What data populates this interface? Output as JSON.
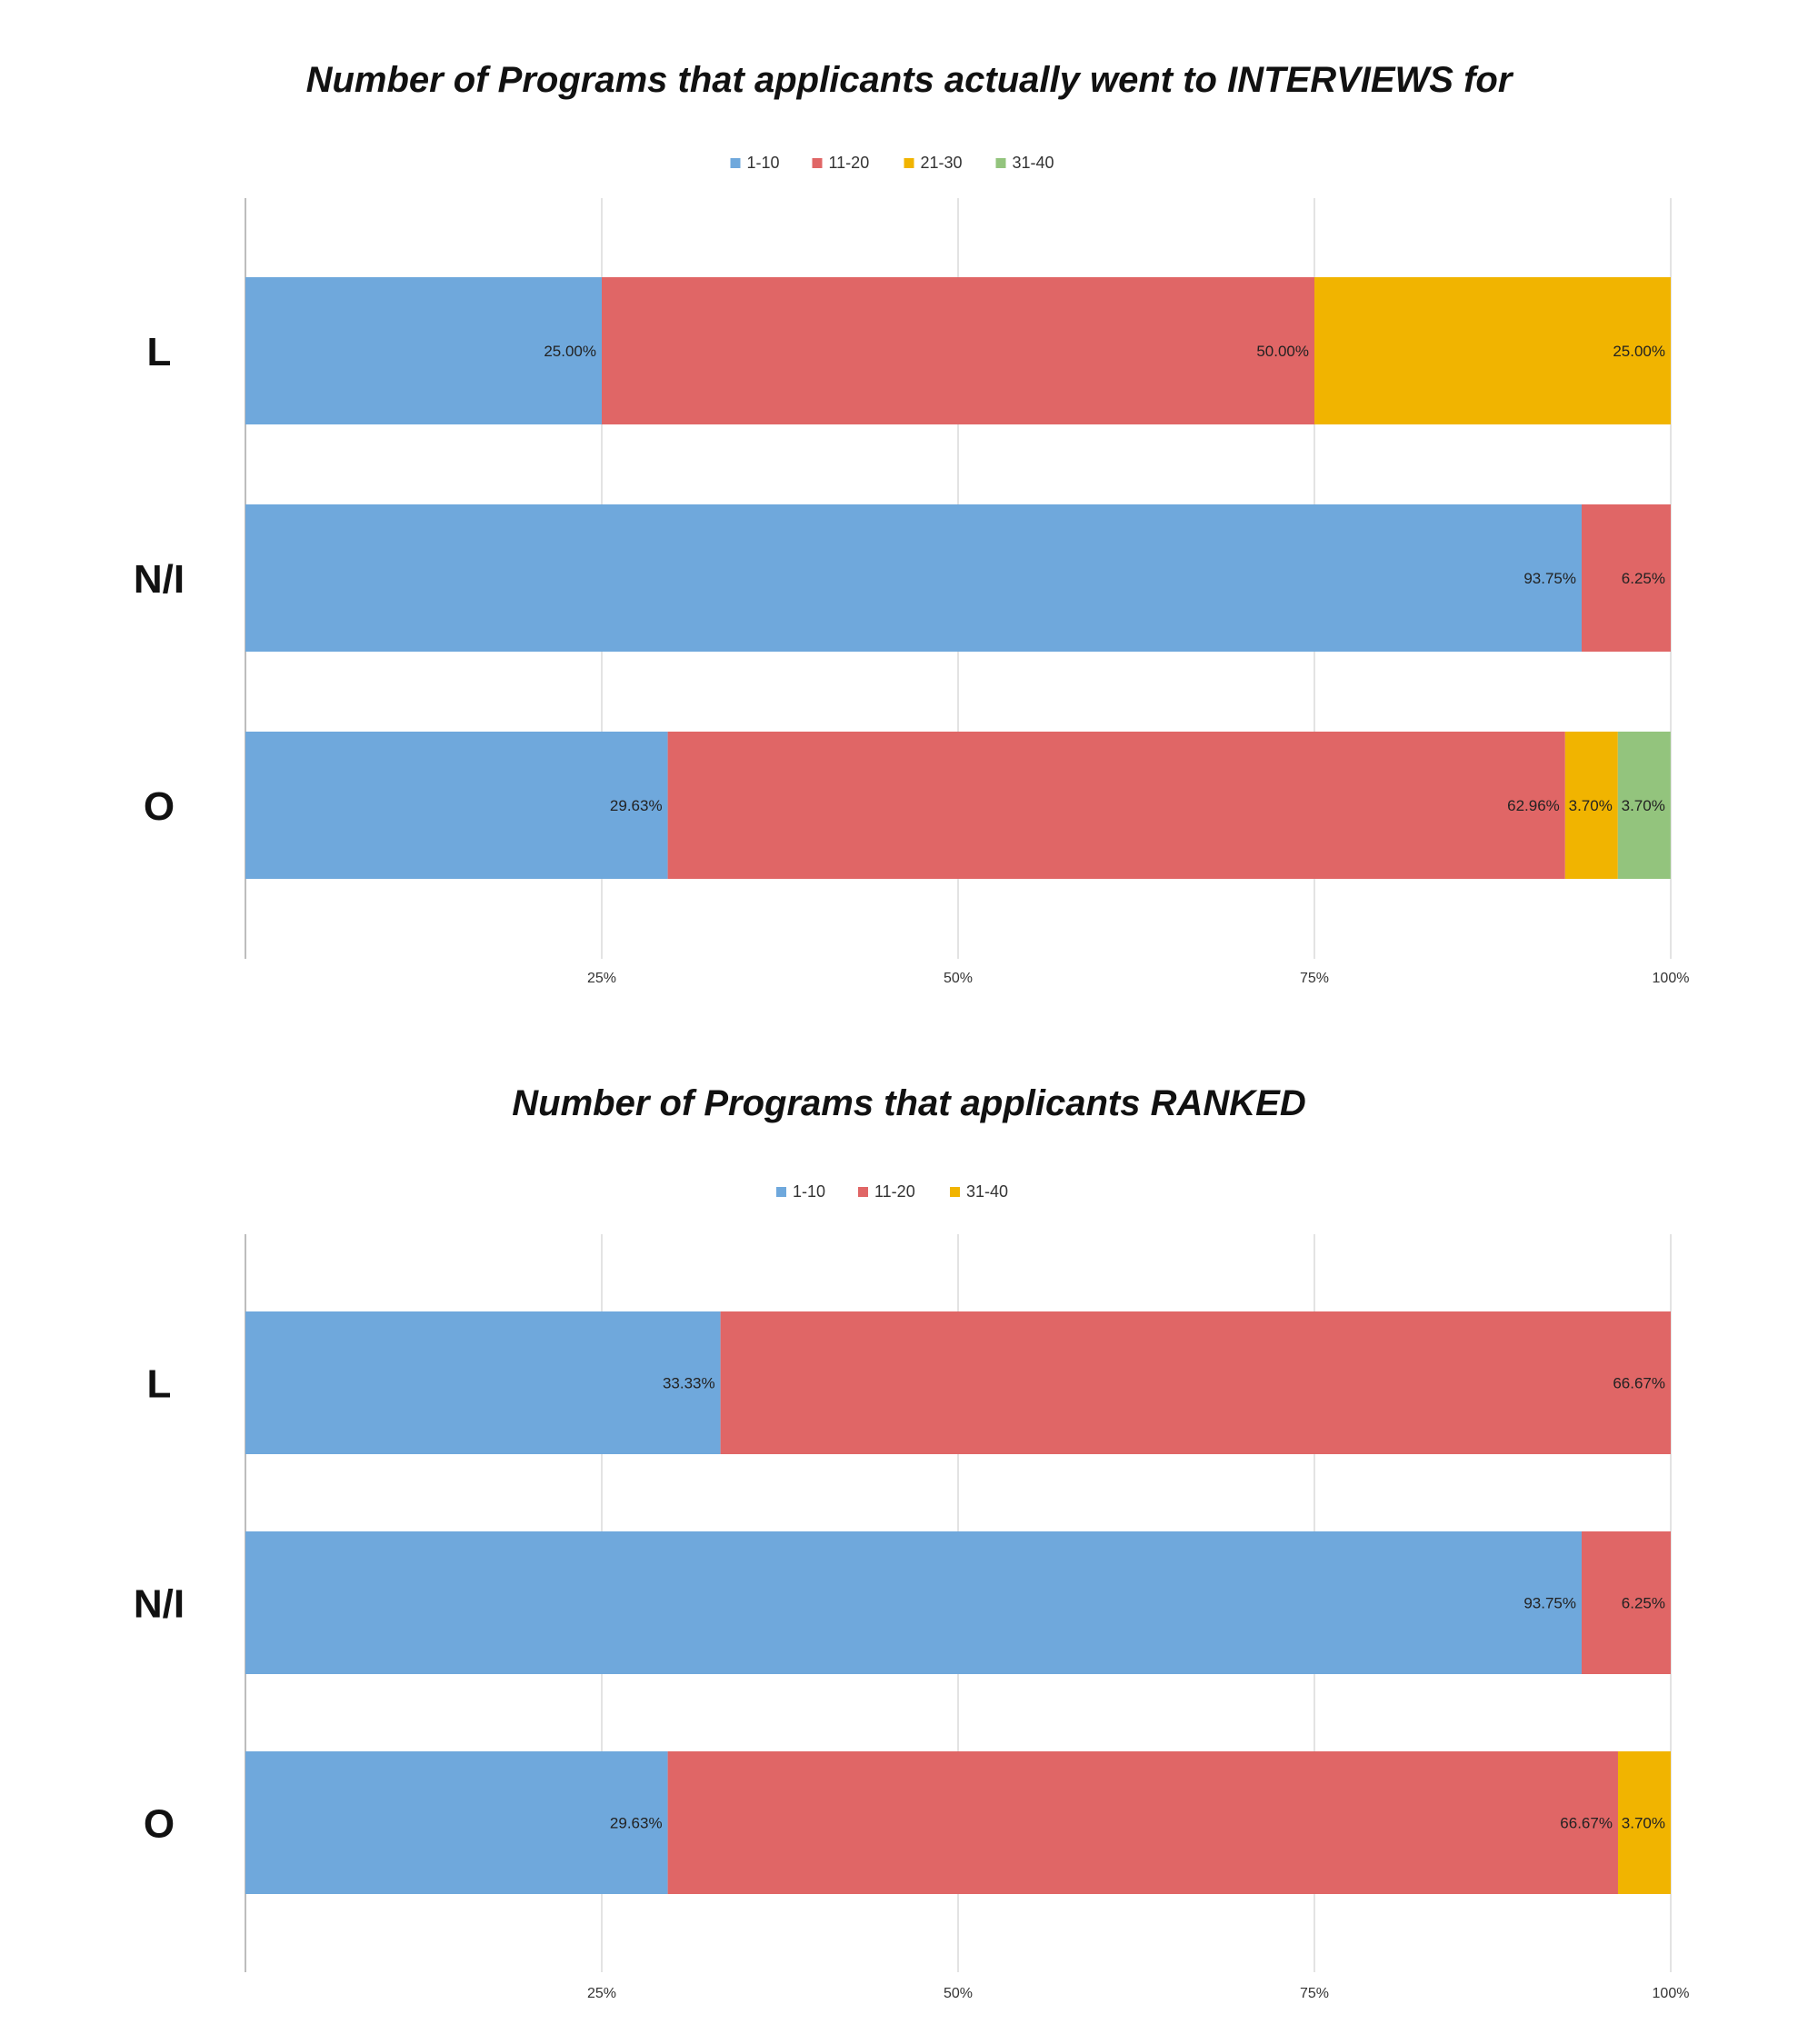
{
  "chart_data": [
    {
      "type": "bar",
      "orientation": "horizontal",
      "stacked": "percent",
      "title": "Number of Programs that applicants actually went to INTERVIEWS for",
      "xlabel": "",
      "ylabel": "",
      "xlim": [
        0,
        100
      ],
      "x_ticks": [
        "25%",
        "50%",
        "75%",
        "100%"
      ],
      "grid": true,
      "legend_position": "top",
      "categories": [
        "L",
        "N/I",
        "O"
      ],
      "series": [
        {
          "name": "1-10",
          "color": "#6fa8dc",
          "values": [
            25.0,
            93.75,
            29.63
          ],
          "labels": [
            "25.00%",
            "93.75%",
            "29.63%"
          ]
        },
        {
          "name": "11-20",
          "color": "#e06666",
          "values": [
            50.0,
            6.25,
            62.96
          ],
          "labels": [
            "50.00%",
            "6.25%",
            "62.96%"
          ]
        },
        {
          "name": "21-30",
          "color": "#f1b400",
          "values": [
            25.0,
            0,
            3.7
          ],
          "labels": [
            "25.00%",
            "",
            "3.70%"
          ]
        },
        {
          "name": "31-40",
          "color": "#93c47d",
          "values": [
            0,
            0,
            3.7
          ],
          "labels": [
            "",
            "",
            "3.70%"
          ]
        }
      ]
    },
    {
      "type": "bar",
      "orientation": "horizontal",
      "stacked": "percent",
      "title": "Number of Programs that applicants RANKED",
      "xlabel": "",
      "ylabel": "",
      "xlim": [
        0,
        100
      ],
      "x_ticks": [
        "25%",
        "50%",
        "75%",
        "100%"
      ],
      "grid": true,
      "legend_position": "top",
      "categories": [
        "L",
        "N/I",
        "O"
      ],
      "series": [
        {
          "name": "1-10",
          "color": "#6fa8dc",
          "values": [
            33.33,
            93.75,
            29.63
          ],
          "labels": [
            "33.33%",
            "93.75%",
            "29.63%"
          ]
        },
        {
          "name": "11-20",
          "color": "#e06666",
          "values": [
            66.67,
            6.25,
            66.67
          ],
          "labels": [
            "66.67%",
            "6.25%",
            "66.67%"
          ]
        },
        {
          "name": "31-40",
          "color": "#f1b400",
          "values": [
            0,
            0,
            3.7
          ],
          "labels": [
            "",
            "",
            "3.70%"
          ]
        }
      ]
    }
  ]
}
